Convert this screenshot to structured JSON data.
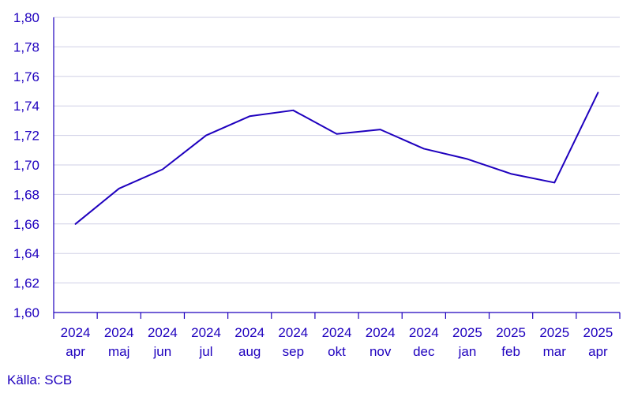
{
  "chart_data": {
    "type": "line",
    "title": "",
    "xlabel": "",
    "ylabel": "",
    "categories": [
      [
        "2024",
        "apr"
      ],
      [
        "2024",
        "maj"
      ],
      [
        "2024",
        "jun"
      ],
      [
        "2024",
        "jul"
      ],
      [
        "2024",
        "aug"
      ],
      [
        "2024",
        "sep"
      ],
      [
        "2024",
        "okt"
      ],
      [
        "2024",
        "nov"
      ],
      [
        "2024",
        "dec"
      ],
      [
        "2025",
        "jan"
      ],
      [
        "2025",
        "feb"
      ],
      [
        "2025",
        "mar"
      ],
      [
        "2025",
        "apr"
      ]
    ],
    "series": [
      {
        "values": [
          1.66,
          1.684,
          1.697,
          1.72,
          1.733,
          1.737,
          1.721,
          1.724,
          1.711,
          1.704,
          1.694,
          1.688,
          1.749
        ],
        "color": "#1e00be"
      }
    ],
    "ylim": [
      1.6,
      1.8
    ],
    "yticks": [
      "1,60",
      "1,62",
      "1,64",
      "1,66",
      "1,68",
      "1,70",
      "1,72",
      "1,74",
      "1,76",
      "1,78",
      "1,80"
    ],
    "grid": true,
    "legend": "none",
    "colors": {
      "text": "#1e00be",
      "line": "#1e00be",
      "grid": "#cfcfe6",
      "axis": "#1e00be"
    }
  },
  "source": {
    "label": "Källa: SCB"
  }
}
